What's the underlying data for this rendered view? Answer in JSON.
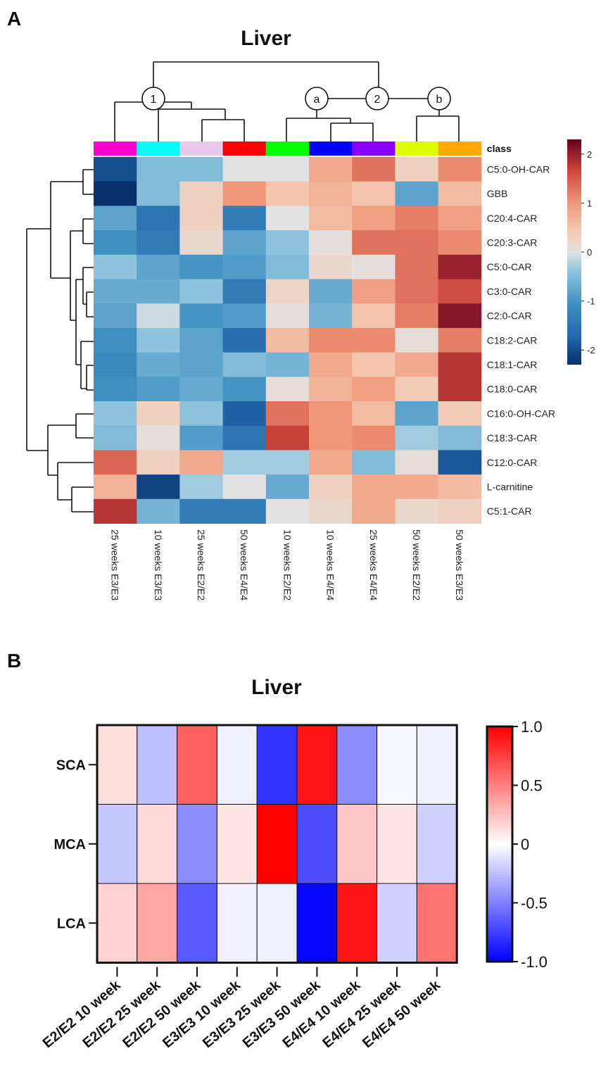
{
  "panels": {
    "a": "A",
    "b": "B"
  },
  "chart_data": [
    {
      "type": "heatmap",
      "title": "Liver",
      "class_label": "class",
      "class_colors": [
        "#ff00cc",
        "#00ffff",
        "#e8c8ec",
        "#ff0000",
        "#00ff00",
        "#0000ff",
        "#8800ff",
        "#ddff00",
        "#ffaa00"
      ],
      "columns": [
        "25 weeks E3/E3",
        "10 weeks E3/E3",
        "25 weeks E2/E2",
        "50 weeks E4/E4",
        "10 weeks E2/E2",
        "10 weeks E4/E4",
        "25 weeks E4/E4",
        "50 weeks E2/E2",
        "50 weeks E3/E3"
      ],
      "rows": [
        "C5:0-OH-CAR",
        "GBB",
        "C20:4-CAR",
        "C20:3-CAR",
        "C5:0-CAR",
        "C3:0-CAR",
        "C2:0-CAR",
        "C18:2-CAR",
        "C18:1-CAR",
        "C18:0-CAR",
        "C16:0-OH-CAR",
        "C18:3-CAR",
        "C12:0-CAR",
        "L-carnitine",
        "C5:1-CAR"
      ],
      "values": [
        [
          -2.0,
          -0.5,
          -0.5,
          0.0,
          0.0,
          0.8,
          1.3,
          0.3,
          1.1
        ],
        [
          -2.3,
          -0.5,
          0.3,
          1.0,
          0.5,
          0.7,
          0.5,
          -0.8,
          0.6
        ],
        [
          -0.8,
          -1.5,
          0.3,
          -1.4,
          0.0,
          0.6,
          0.9,
          1.2,
          0.9
        ],
        [
          -1.1,
          -1.4,
          0.2,
          -0.8,
          -0.4,
          0.05,
          1.3,
          1.3,
          1.1
        ],
        [
          -0.4,
          -0.8,
          -1.0,
          -0.9,
          -0.5,
          0.2,
          0.05,
          1.3,
          2.0
        ],
        [
          -0.7,
          -0.7,
          -0.4,
          -1.4,
          0.25,
          -0.7,
          0.9,
          1.3,
          1.6
        ],
        [
          -0.8,
          -0.1,
          -1.0,
          -0.9,
          0.05,
          -0.6,
          0.5,
          1.2,
          2.1
        ],
        [
          -1.1,
          -0.4,
          -0.8,
          -1.6,
          0.6,
          1.1,
          1.1,
          0.1,
          1.2
        ],
        [
          -1.2,
          -0.7,
          -0.8,
          -0.5,
          -0.6,
          0.8,
          0.5,
          0.8,
          1.8
        ],
        [
          -1.1,
          -0.9,
          -0.7,
          -1.0,
          0.1,
          0.7,
          0.9,
          0.4,
          1.8
        ],
        [
          -0.4,
          0.3,
          -0.4,
          -1.8,
          1.3,
          1.0,
          0.6,
          -0.8,
          0.4
        ],
        [
          -0.5,
          0.05,
          -0.9,
          -1.5,
          1.7,
          1.0,
          1.1,
          -0.3,
          -0.5
        ],
        [
          1.4,
          0.3,
          0.8,
          -0.3,
          -0.3,
          0.8,
          -0.5,
          0.1,
          -1.9
        ],
        [
          0.7,
          -2.1,
          -0.3,
          0.0,
          -0.7,
          0.3,
          0.8,
          0.8,
          0.6
        ],
        [
          1.8,
          -0.6,
          -1.4,
          -1.4,
          0.0,
          0.2,
          0.8,
          0.2,
          0.3
        ]
      ],
      "node_labels": [
        "1",
        "a",
        "2",
        "b"
      ],
      "colorbar": {
        "ticks": [
          2,
          1,
          0,
          -1,
          -2
        ],
        "range": [
          -2.3,
          2.3
        ]
      }
    },
    {
      "type": "heatmap",
      "title": "Liver",
      "rows": [
        "SCA",
        "MCA",
        "LCA"
      ],
      "columns": [
        "E2/E2 10 week",
        "E2/E2 25 week",
        "E2/E2 50 week",
        "E3/E3 10 week",
        "E3/E3 25 week",
        "E3/E3 50 week",
        "E4/E4 10 week",
        "E4/E4 25 week",
        "E4/E4 50 week"
      ],
      "values": [
        [
          0.13,
          -0.25,
          0.62,
          -0.06,
          -0.8,
          0.92,
          -0.45,
          -0.03,
          -0.06
        ],
        [
          -0.22,
          0.15,
          -0.45,
          0.1,
          1.0,
          -0.7,
          0.22,
          0.1,
          -0.18
        ],
        [
          0.18,
          0.35,
          -0.65,
          -0.06,
          -0.06,
          -0.98,
          0.92,
          -0.18,
          0.55
        ]
      ],
      "colorbar": {
        "ticks": [
          "1.0",
          "0.5",
          "0",
          "-0.5",
          "-1.0"
        ],
        "range": [
          -1,
          1
        ]
      }
    }
  ]
}
